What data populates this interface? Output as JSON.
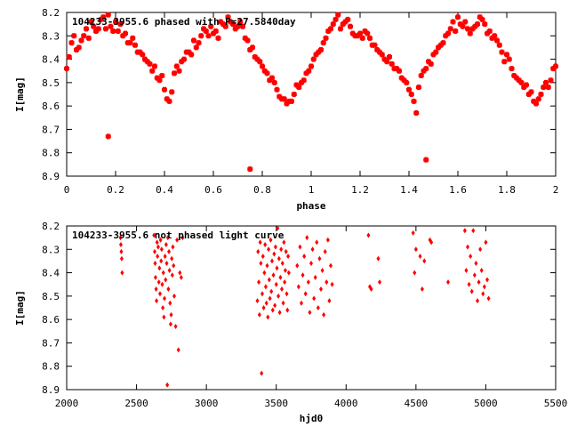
{
  "chart_data": [
    {
      "type": "scatter",
      "title": "104233-3955.6 phased with P=27.5840day",
      "xlabel": "phase",
      "ylabel": "I[mag]",
      "xlim": [
        0,
        2
      ],
      "ylim": [
        8.2,
        8.9
      ],
      "y_inverted": true,
      "grid": false,
      "x_ticks": [
        "0",
        "0.2",
        "0.4",
        "0.6",
        "0.8",
        "1",
        "1.2",
        "1.4",
        "1.6",
        "1.8",
        "2"
      ],
      "y_ticks": [
        "8.2",
        "8.3",
        "8.4",
        "8.5",
        "8.6",
        "8.7",
        "8.8",
        "8.9"
      ],
      "marker_color": "#ff0000",
      "points": [
        [
          0.0,
          8.44
        ],
        [
          0.01,
          8.39
        ],
        [
          0.02,
          8.33
        ],
        [
          0.03,
          8.3
        ],
        [
          0.04,
          8.36
        ],
        [
          0.05,
          8.35
        ],
        [
          0.06,
          8.32
        ],
        [
          0.07,
          8.3
        ],
        [
          0.08,
          8.27
        ],
        [
          0.09,
          8.31
        ],
        [
          0.1,
          8.24
        ],
        [
          0.11,
          8.26
        ],
        [
          0.12,
          8.28
        ],
        [
          0.13,
          8.27
        ],
        [
          0.14,
          8.23
        ],
        [
          0.15,
          8.22
        ],
        [
          0.16,
          8.27
        ],
        [
          0.17,
          8.21
        ],
        [
          0.18,
          8.26
        ],
        [
          0.19,
          8.28
        ],
        [
          0.2,
          8.24
        ],
        [
          0.21,
          8.28
        ],
        [
          0.22,
          8.25
        ],
        [
          0.23,
          8.3
        ],
        [
          0.24,
          8.29
        ],
        [
          0.25,
          8.33
        ],
        [
          0.26,
          8.33
        ],
        [
          0.27,
          8.31
        ],
        [
          0.28,
          8.34
        ],
        [
          0.29,
          8.37
        ],
        [
          0.3,
          8.37
        ],
        [
          0.31,
          8.38
        ],
        [
          0.32,
          8.4
        ],
        [
          0.33,
          8.41
        ],
        [
          0.34,
          8.42
        ],
        [
          0.35,
          8.45
        ],
        [
          0.36,
          8.43
        ],
        [
          0.37,
          8.48
        ],
        [
          0.38,
          8.49
        ],
        [
          0.39,
          8.47
        ],
        [
          0.4,
          8.53
        ],
        [
          0.41,
          8.57
        ],
        [
          0.42,
          8.58
        ],
        [
          0.43,
          8.54
        ],
        [
          0.44,
          8.46
        ],
        [
          0.45,
          8.43
        ],
        [
          0.46,
          8.45
        ],
        [
          0.47,
          8.41
        ],
        [
          0.48,
          8.4
        ],
        [
          0.49,
          8.37
        ],
        [
          0.5,
          8.37
        ],
        [
          0.51,
          8.38
        ],
        [
          0.52,
          8.32
        ],
        [
          0.53,
          8.35
        ],
        [
          0.54,
          8.33
        ],
        [
          0.55,
          8.3
        ],
        [
          0.56,
          8.27
        ],
        [
          0.57,
          8.28
        ],
        [
          0.58,
          8.3
        ],
        [
          0.59,
          8.26
        ],
        [
          0.6,
          8.29
        ],
        [
          0.61,
          8.28
        ],
        [
          0.62,
          8.31
        ],
        [
          0.63,
          8.24
        ],
        [
          0.64,
          8.25
        ],
        [
          0.65,
          8.26
        ],
        [
          0.66,
          8.22
        ],
        [
          0.67,
          8.24
        ],
        [
          0.68,
          8.25
        ],
        [
          0.69,
          8.27
        ],
        [
          0.7,
          8.26
        ],
        [
          0.71,
          8.24
        ],
        [
          0.72,
          8.26
        ],
        [
          0.73,
          8.31
        ],
        [
          0.74,
          8.32
        ],
        [
          0.75,
          8.36
        ],
        [
          0.76,
          8.35
        ],
        [
          0.77,
          8.39
        ],
        [
          0.78,
          8.4
        ],
        [
          0.79,
          8.41
        ],
        [
          0.8,
          8.43
        ],
        [
          0.81,
          8.45
        ],
        [
          0.82,
          8.46
        ],
        [
          0.83,
          8.49
        ],
        [
          0.84,
          8.48
        ],
        [
          0.85,
          8.5
        ],
        [
          0.86,
          8.53
        ],
        [
          0.87,
          8.56
        ],
        [
          0.88,
          8.57
        ],
        [
          0.89,
          8.57
        ],
        [
          0.9,
          8.59
        ],
        [
          0.91,
          8.58
        ],
        [
          0.92,
          8.58
        ],
        [
          0.93,
          8.55
        ],
        [
          0.94,
          8.51
        ],
        [
          0.95,
          8.52
        ],
        [
          0.96,
          8.5
        ],
        [
          0.97,
          8.49
        ],
        [
          0.98,
          8.46
        ],
        [
          0.99,
          8.45
        ],
        [
          1.0,
          8.43
        ],
        [
          1.01,
          8.4
        ],
        [
          1.02,
          8.38
        ],
        [
          1.03,
          8.37
        ],
        [
          1.04,
          8.36
        ],
        [
          1.05,
          8.33
        ],
        [
          1.06,
          8.31
        ],
        [
          1.07,
          8.28
        ],
        [
          1.08,
          8.27
        ],
        [
          1.09,
          8.25
        ],
        [
          1.1,
          8.23
        ],
        [
          1.11,
          8.21
        ],
        [
          1.12,
          8.27
        ],
        [
          1.13,
          8.25
        ],
        [
          1.14,
          8.24
        ],
        [
          1.15,
          8.23
        ],
        [
          1.16,
          8.26
        ],
        [
          1.17,
          8.29
        ],
        [
          1.18,
          8.3
        ],
        [
          1.19,
          8.3
        ],
        [
          1.2,
          8.29
        ],
        [
          1.21,
          8.31
        ],
        [
          1.22,
          8.28
        ],
        [
          1.23,
          8.29
        ],
        [
          1.24,
          8.31
        ],
        [
          1.25,
          8.34
        ],
        [
          1.26,
          8.34
        ],
        [
          1.27,
          8.36
        ],
        [
          1.28,
          8.37
        ],
        [
          1.29,
          8.38
        ],
        [
          1.3,
          8.4
        ],
        [
          1.31,
          8.41
        ],
        [
          1.32,
          8.39
        ],
        [
          1.33,
          8.42
        ],
        [
          1.34,
          8.44
        ],
        [
          1.35,
          8.44
        ],
        [
          1.36,
          8.45
        ],
        [
          1.37,
          8.48
        ],
        [
          1.38,
          8.49
        ],
        [
          1.39,
          8.5
        ],
        [
          1.4,
          8.53
        ],
        [
          1.41,
          8.55
        ],
        [
          1.42,
          8.58
        ],
        [
          1.43,
          8.63
        ],
        [
          1.44,
          8.52
        ],
        [
          1.45,
          8.47
        ],
        [
          1.46,
          8.45
        ],
        [
          1.47,
          8.44
        ],
        [
          1.48,
          8.41
        ],
        [
          1.49,
          8.42
        ],
        [
          1.5,
          8.38
        ],
        [
          1.51,
          8.37
        ],
        [
          1.52,
          8.35
        ],
        [
          1.53,
          8.34
        ],
        [
          1.54,
          8.33
        ],
        [
          1.55,
          8.3
        ],
        [
          1.56,
          8.29
        ],
        [
          1.57,
          8.27
        ],
        [
          1.58,
          8.24
        ],
        [
          1.59,
          8.28
        ],
        [
          1.6,
          8.22
        ],
        [
          1.61,
          8.25
        ],
        [
          1.62,
          8.26
        ],
        [
          1.63,
          8.24
        ],
        [
          1.64,
          8.27
        ],
        [
          1.65,
          8.29
        ],
        [
          1.66,
          8.27
        ],
        [
          1.67,
          8.26
        ],
        [
          1.68,
          8.25
        ],
        [
          1.69,
          8.22
        ],
        [
          1.7,
          8.23
        ],
        [
          1.71,
          8.25
        ],
        [
          1.72,
          8.29
        ],
        [
          1.73,
          8.28
        ],
        [
          1.74,
          8.31
        ],
        [
          1.75,
          8.3
        ],
        [
          1.76,
          8.32
        ],
        [
          1.77,
          8.34
        ],
        [
          1.78,
          8.37
        ],
        [
          1.79,
          8.41
        ],
        [
          1.8,
          8.38
        ],
        [
          1.81,
          8.4
        ],
        [
          1.82,
          8.44
        ],
        [
          1.83,
          8.47
        ],
        [
          1.84,
          8.48
        ],
        [
          1.85,
          8.49
        ],
        [
          1.86,
          8.5
        ],
        [
          1.87,
          8.52
        ],
        [
          1.88,
          8.51
        ],
        [
          1.89,
          8.55
        ],
        [
          1.9,
          8.54
        ],
        [
          1.91,
          8.58
        ],
        [
          1.92,
          8.59
        ],
        [
          1.93,
          8.57
        ],
        [
          1.94,
          8.55
        ],
        [
          1.95,
          8.52
        ],
        [
          1.96,
          8.5
        ],
        [
          1.97,
          8.52
        ],
        [
          1.98,
          8.49
        ],
        [
          1.99,
          8.44
        ],
        [
          2.0,
          8.43
        ],
        [
          0.17,
          8.73
        ],
        [
          0.75,
          8.87
        ],
        [
          1.47,
          8.83
        ]
      ]
    },
    {
      "type": "scatter",
      "title": "104233-3955.6 not phased light curve",
      "xlabel": "hjd0",
      "ylabel": "I[mag]",
      "xlim": [
        2000,
        5500
      ],
      "ylim": [
        8.2,
        8.9
      ],
      "y_inverted": true,
      "grid": false,
      "x_ticks": [
        "2000",
        "2500",
        "3000",
        "3500",
        "4000",
        "4500",
        "5000",
        "5500"
      ],
      "y_ticks": [
        "8.2",
        "8.3",
        "8.4",
        "8.5",
        "8.6",
        "8.7",
        "8.8",
        "8.9"
      ],
      "marker_color": "#ff0000",
      "points": [
        [
          2385,
          8.25
        ],
        [
          2388,
          8.28
        ],
        [
          2391,
          8.31
        ],
        [
          2394,
          8.34
        ],
        [
          2397,
          8.4
        ],
        [
          2625,
          8.24
        ],
        [
          2630,
          8.31
        ],
        [
          2633,
          8.36
        ],
        [
          2636,
          8.42
        ],
        [
          2640,
          8.47
        ],
        [
          2643,
          8.52
        ],
        [
          2647,
          8.27
        ],
        [
          2650,
          8.33
        ],
        [
          2655,
          8.29
        ],
        [
          2660,
          8.44
        ],
        [
          2664,
          8.38
        ],
        [
          2668,
          8.49
        ],
        [
          2672,
          8.26
        ],
        [
          2676,
          8.35
        ],
        [
          2680,
          8.3
        ],
        [
          2684,
          8.45
        ],
        [
          2688,
          8.55
        ],
        [
          2692,
          8.4
        ],
        [
          2696,
          8.59
        ],
        [
          2700,
          8.51
        ],
        [
          2704,
          8.33
        ],
        [
          2708,
          8.43
        ],
        [
          2712,
          8.28
        ],
        [
          2716,
          8.36
        ],
        [
          2720,
          8.88
        ],
        [
          2724,
          8.25
        ],
        [
          2728,
          8.47
        ],
        [
          2732,
          8.31
        ],
        [
          2736,
          8.39
        ],
        [
          2740,
          8.53
        ],
        [
          2744,
          8.62
        ],
        [
          2748,
          8.58
        ],
        [
          2752,
          8.34
        ],
        [
          2756,
          8.41
        ],
        [
          2760,
          8.29
        ],
        [
          2765,
          8.37
        ],
        [
          2770,
          8.5
        ],
        [
          2780,
          8.63
        ],
        [
          2790,
          8.26
        ],
        [
          2800,
          8.73
        ],
        [
          2810,
          8.4
        ],
        [
          2820,
          8.42
        ],
        [
          2830,
          8.25
        ],
        [
          3365,
          8.52
        ],
        [
          3370,
          8.31
        ],
        [
          3375,
          8.44
        ],
        [
          3380,
          8.58
        ],
        [
          3385,
          8.27
        ],
        [
          3390,
          8.36
        ],
        [
          3395,
          8.83
        ],
        [
          3400,
          8.49
        ],
        [
          3405,
          8.33
        ],
        [
          3410,
          8.55
        ],
        [
          3415,
          8.4
        ],
        [
          3420,
          8.28
        ],
        [
          3425,
          8.46
        ],
        [
          3430,
          8.53
        ],
        [
          3435,
          8.37
        ],
        [
          3440,
          8.59
        ],
        [
          3445,
          8.3
        ],
        [
          3450,
          8.43
        ],
        [
          3455,
          8.51
        ],
        [
          3460,
          8.26
        ],
        [
          3465,
          8.48
        ],
        [
          3470,
          8.35
        ],
        [
          3475,
          8.56
        ],
        [
          3480,
          8.41
        ],
        [
          3485,
          8.32
        ],
        [
          3490,
          8.54
        ],
        [
          3495,
          8.29
        ],
        [
          3500,
          8.45
        ],
        [
          3505,
          8.38
        ],
        [
          3510,
          8.21
        ],
        [
          3515,
          8.5
        ],
        [
          3520,
          8.34
        ],
        [
          3525,
          8.57
        ],
        [
          3530,
          8.42
        ],
        [
          3535,
          8.3
        ],
        [
          3540,
          8.47
        ],
        [
          3545,
          8.36
        ],
        [
          3550,
          8.53
        ],
        [
          3555,
          8.27
        ],
        [
          3560,
          8.44
        ],
        [
          3565,
          8.39
        ],
        [
          3570,
          8.31
        ],
        [
          3575,
          8.49
        ],
        [
          3580,
          8.56
        ],
        [
          3585,
          8.33
        ],
        [
          3590,
          8.4
        ],
        [
          3650,
          8.37
        ],
        [
          3660,
          8.46
        ],
        [
          3670,
          8.29
        ],
        [
          3680,
          8.53
        ],
        [
          3690,
          8.41
        ],
        [
          3700,
          8.33
        ],
        [
          3710,
          8.49
        ],
        [
          3720,
          8.25
        ],
        [
          3730,
          8.44
        ],
        [
          3740,
          8.57
        ],
        [
          3750,
          8.36
        ],
        [
          3760,
          8.3
        ],
        [
          3770,
          8.51
        ],
        [
          3780,
          8.42
        ],
        [
          3790,
          8.27
        ],
        [
          3800,
          8.55
        ],
        [
          3810,
          8.34
        ],
        [
          3820,
          8.47
        ],
        [
          3830,
          8.39
        ],
        [
          3840,
          8.58
        ],
        [
          3850,
          8.31
        ],
        [
          3860,
          8.44
        ],
        [
          3870,
          8.26
        ],
        [
          3880,
          8.52
        ],
        [
          3890,
          8.37
        ],
        [
          3900,
          8.45
        ],
        [
          4160,
          8.24
        ],
        [
          4170,
          8.46
        ],
        [
          4180,
          8.47
        ],
        [
          4230,
          8.34
        ],
        [
          4240,
          8.44
        ],
        [
          4480,
          8.23
        ],
        [
          4490,
          8.4
        ],
        [
          4500,
          8.3
        ],
        [
          4530,
          8.33
        ],
        [
          4545,
          8.47
        ],
        [
          4560,
          8.35
        ],
        [
          4600,
          8.26
        ],
        [
          4610,
          8.27
        ],
        [
          4730,
          8.44
        ],
        [
          4850,
          8.22
        ],
        [
          4860,
          8.39
        ],
        [
          4870,
          8.29
        ],
        [
          4880,
          8.45
        ],
        [
          4890,
          8.33
        ],
        [
          4900,
          8.48
        ],
        [
          4910,
          8.22
        ],
        [
          4920,
          8.41
        ],
        [
          4930,
          8.36
        ],
        [
          4940,
          8.52
        ],
        [
          4950,
          8.44
        ],
        [
          4960,
          8.3
        ],
        [
          4970,
          8.39
        ],
        [
          4980,
          8.49
        ],
        [
          4990,
          8.46
        ],
        [
          5000,
          8.27
        ],
        [
          5010,
          8.43
        ],
        [
          5020,
          8.51
        ]
      ]
    }
  ]
}
